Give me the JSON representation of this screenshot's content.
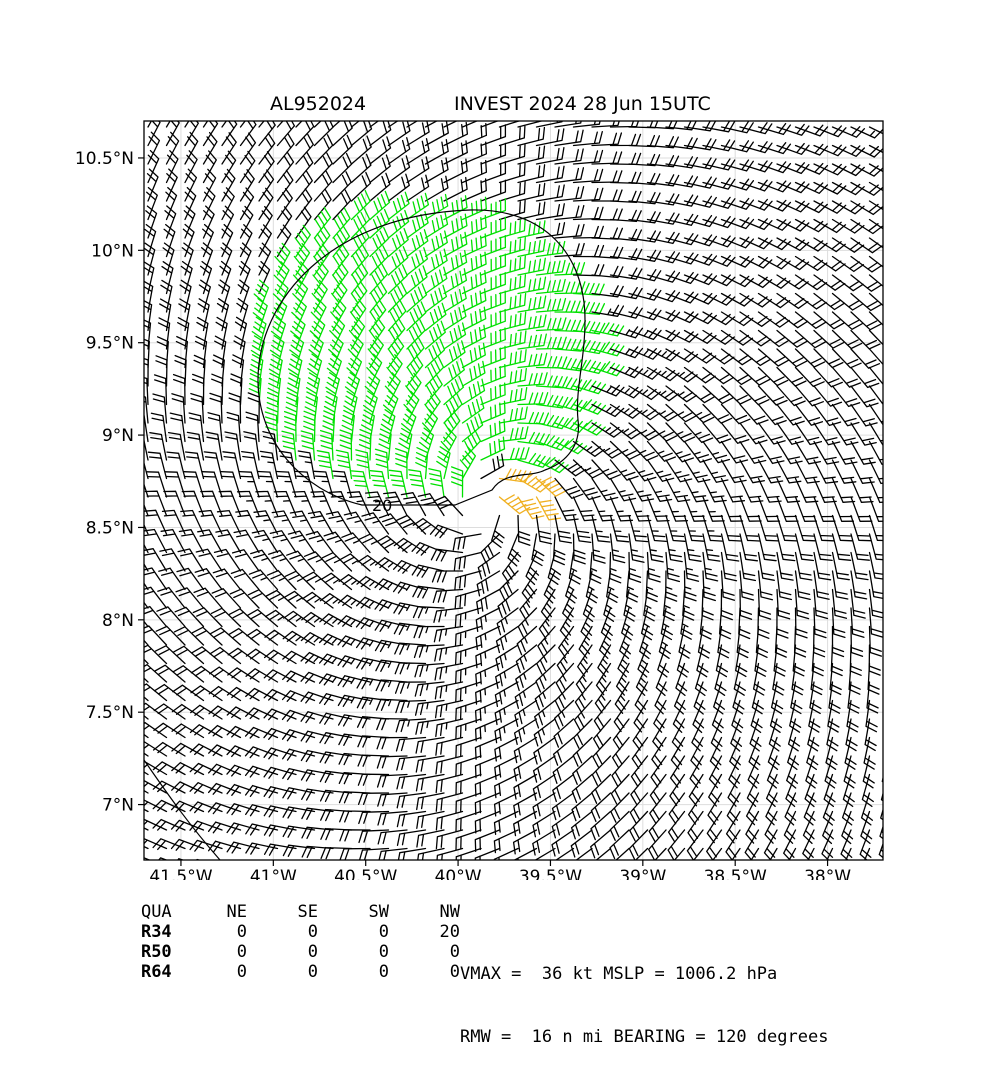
{
  "header": {
    "storm_id": "AL952024",
    "storm_label": "INVEST 2024 28 Jun 15UTC"
  },
  "chart_data": {
    "type": "wind-barb-map",
    "lon_range": [
      -41.7,
      -37.7
    ],
    "lat_range": [
      6.7,
      10.7
    ],
    "x_ticks": [
      {
        "value": -41.5,
        "label": "41.5°W"
      },
      {
        "value": -41.0,
        "label": "41°W"
      },
      {
        "value": -40.5,
        "label": "40.5°W"
      },
      {
        "value": -40.0,
        "label": "40°W"
      },
      {
        "value": -39.5,
        "label": "39.5°W"
      },
      {
        "value": -39.0,
        "label": "39°W"
      },
      {
        "value": -38.5,
        "label": "38.5°W"
      },
      {
        "value": -38.0,
        "label": "38°W"
      }
    ],
    "y_ticks": [
      {
        "value": 7.0,
        "label": "7°N"
      },
      {
        "value": 7.5,
        "label": "7.5°N"
      },
      {
        "value": 8.0,
        "label": "8°N"
      },
      {
        "value": 8.5,
        "label": "8.5°N"
      },
      {
        "value": 9.0,
        "label": "9°N"
      },
      {
        "value": 9.5,
        "label": "9.5°N"
      },
      {
        "value": 10.0,
        "label": "10°N"
      },
      {
        "value": 10.5,
        "label": "10.5°N"
      }
    ],
    "grid": true,
    "center": {
      "lon": -39.85,
      "lat": 8.62
    },
    "barb_colors": {
      "below34": "#000000",
      "r34": "#00e000",
      "r50": "#f0b020"
    },
    "contour_label": "20"
  },
  "wind_radii": {
    "headers": [
      "QUA",
      "NE",
      "SE",
      "SW",
      "NW"
    ],
    "rows": [
      {
        "label": "R34",
        "values": [
          "0",
          "0",
          "0",
          "20"
        ]
      },
      {
        "label": "R50",
        "values": [
          "0",
          "0",
          "0",
          "0"
        ]
      },
      {
        "label": "R64",
        "values": [
          "0",
          "0",
          "0",
          "0"
        ]
      }
    ]
  },
  "stats": {
    "line1": "VMAX =  36 kt MSLP = 1006.2 hPa",
    "line2": "RMW =  16 n mi BEARING = 120 degrees"
  }
}
